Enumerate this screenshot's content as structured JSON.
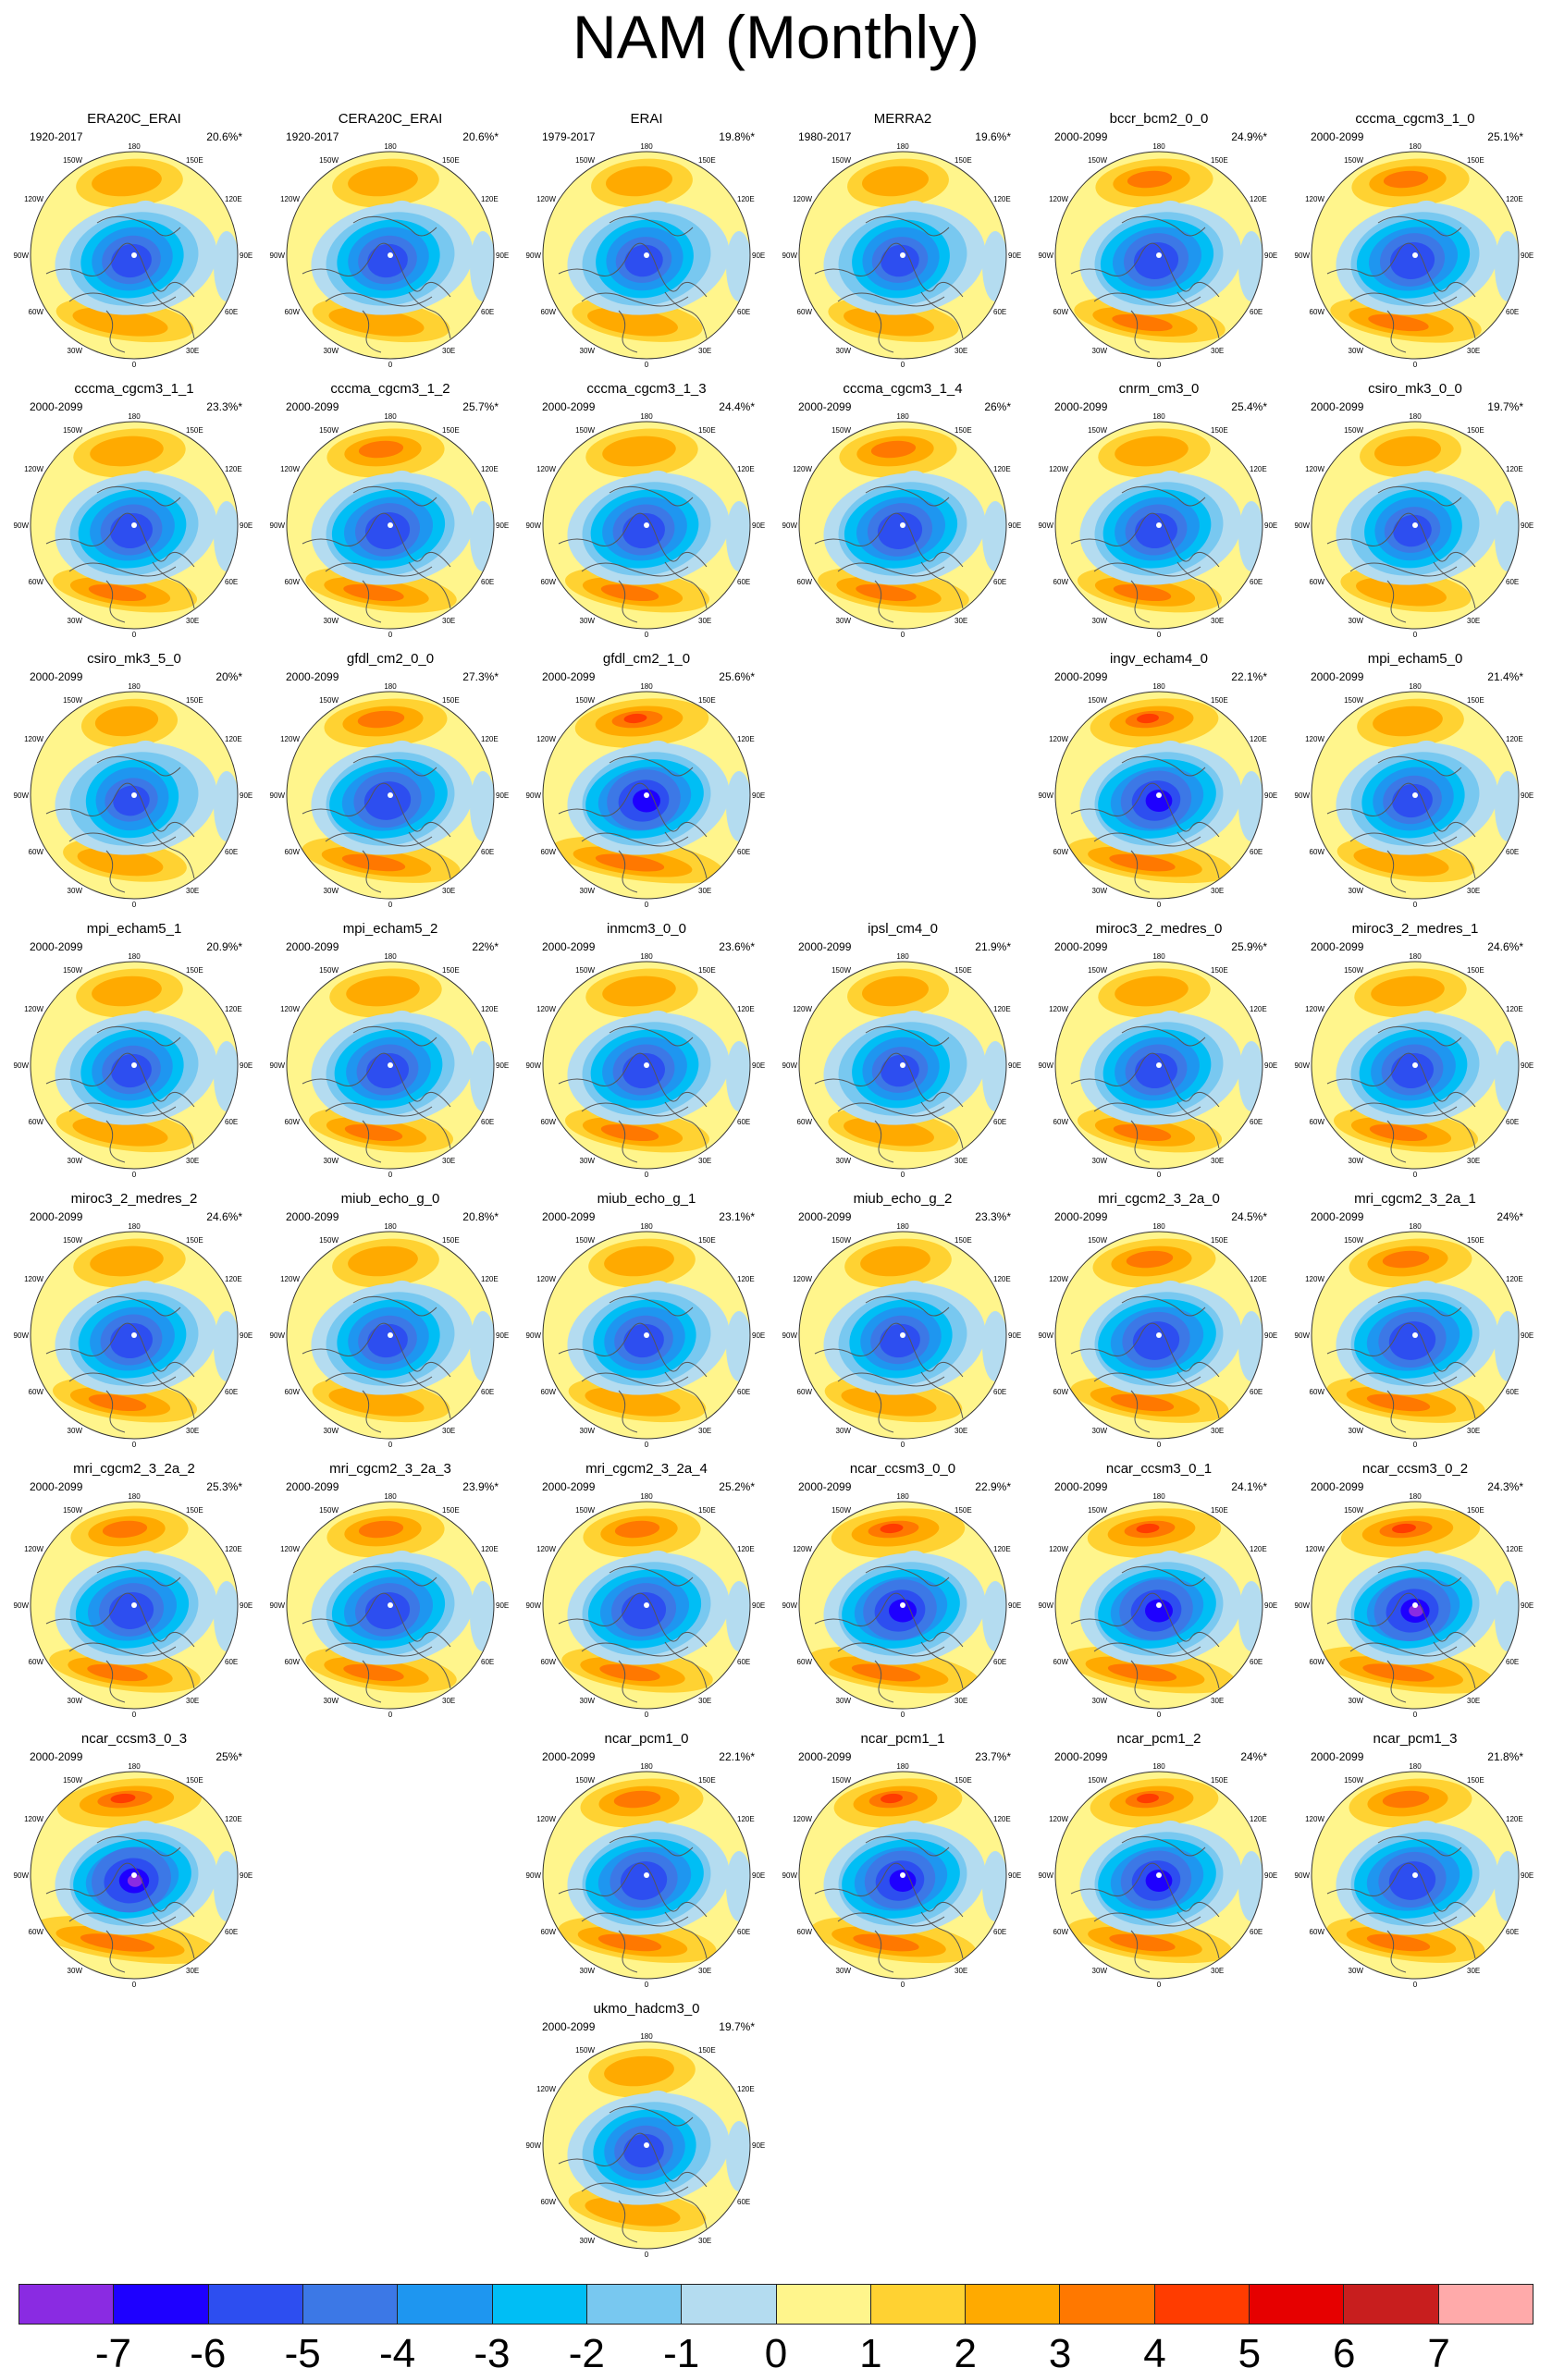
{
  "title": "NAM (Monthly)",
  "panels": [
    {
      "name": "ERA20C_ERAI",
      "period": "1920-2017",
      "pct": "20.6%*",
      "row": 0,
      "col": 0,
      "amp": 1.0
    },
    {
      "name": "CERA20C_ERAI",
      "period": "1920-2017",
      "pct": "20.6%*",
      "row": 0,
      "col": 1,
      "amp": 1.0
    },
    {
      "name": "ERAI",
      "period": "1979-2017",
      "pct": "19.8%*",
      "row": 0,
      "col": 2,
      "amp": 0.95
    },
    {
      "name": "MERRA2",
      "period": "1980-2017",
      "pct": "19.6%*",
      "row": 0,
      "col": 3,
      "amp": 0.95
    },
    {
      "name": "bccr_bcm2_0_0",
      "period": "2000-2099",
      "pct": "24.9%*",
      "row": 0,
      "col": 4,
      "amp": 1.1
    },
    {
      "name": "cccma_cgcm3_1_0",
      "period": "2000-2099",
      "pct": "25.1%*",
      "row": 0,
      "col": 5,
      "amp": 1.1
    },
    {
      "name": "cccma_cgcm3_1_1",
      "period": "2000-2099",
      "pct": "23.3%*",
      "row": 1,
      "col": 0,
      "amp": 1.05
    },
    {
      "name": "cccma_cgcm3_1_2",
      "period": "2000-2099",
      "pct": "25.7%*",
      "row": 1,
      "col": 1,
      "amp": 1.1
    },
    {
      "name": "cccma_cgcm3_1_3",
      "period": "2000-2099",
      "pct": "24.4%*",
      "row": 1,
      "col": 2,
      "amp": 1.05
    },
    {
      "name": "cccma_cgcm3_1_4",
      "period": "2000-2099",
      "pct": "26%*",
      "row": 1,
      "col": 3,
      "amp": 1.1
    },
    {
      "name": "cnrm_cm3_0",
      "period": "2000-2099",
      "pct": "25.4%*",
      "row": 1,
      "col": 4,
      "amp": 1.05
    },
    {
      "name": "csiro_mk3_0_0",
      "period": "2000-2099",
      "pct": "19.7%*",
      "row": 1,
      "col": 5,
      "amp": 0.95
    },
    {
      "name": "csiro_mk3_5_0",
      "period": "2000-2099",
      "pct": "20%*",
      "row": 2,
      "col": 0,
      "amp": 0.9
    },
    {
      "name": "gfdl_cm2_0_0",
      "period": "2000-2099",
      "pct": "27.3%*",
      "row": 2,
      "col": 1,
      "amp": 1.15
    },
    {
      "name": "gfdl_cm2_1_0",
      "period": "2000-2099",
      "pct": "25.6%*",
      "row": 2,
      "col": 2,
      "amp": 1.25
    },
    {
      "name": "ingv_echam4_0",
      "period": "2000-2099",
      "pct": "22.1%*",
      "row": 2,
      "col": 4,
      "amp": 1.2
    },
    {
      "name": "mpi_echam5_0",
      "period": "2000-2099",
      "pct": "21.4%*",
      "row": 2,
      "col": 5,
      "amp": 1.0
    },
    {
      "name": "mpi_echam5_1",
      "period": "2000-2099",
      "pct": "20.9%*",
      "row": 3,
      "col": 0,
      "amp": 1.0
    },
    {
      "name": "mpi_echam5_2",
      "period": "2000-2099",
      "pct": "22%*",
      "row": 3,
      "col": 1,
      "amp": 1.05
    },
    {
      "name": "inmcm3_0_0",
      "period": "2000-2099",
      "pct": "23.6%*",
      "row": 3,
      "col": 2,
      "amp": 1.05
    },
    {
      "name": "ipsl_cm4_0",
      "period": "2000-2099",
      "pct": "21.9%*",
      "row": 3,
      "col": 3,
      "amp": 0.95
    },
    {
      "name": "miroc3_2_medres_0",
      "period": "2000-2099",
      "pct": "25.9%*",
      "row": 3,
      "col": 4,
      "amp": 1.05
    },
    {
      "name": "miroc3_2_medres_1",
      "period": "2000-2099",
      "pct": "24.6%*",
      "row": 3,
      "col": 5,
      "amp": 1.05
    },
    {
      "name": "miroc3_2_medres_2",
      "period": "2000-2099",
      "pct": "24.6%*",
      "row": 4,
      "col": 0,
      "amp": 1.05
    },
    {
      "name": "miub_echo_g_0",
      "period": "2000-2099",
      "pct": "20.8%*",
      "row": 4,
      "col": 1,
      "amp": 1.0
    },
    {
      "name": "miub_echo_g_1",
      "period": "2000-2099",
      "pct": "23.1%*",
      "row": 4,
      "col": 2,
      "amp": 1.0
    },
    {
      "name": "miub_echo_g_2",
      "period": "2000-2099",
      "pct": "23.3%*",
      "row": 4,
      "col": 3,
      "amp": 1.0
    },
    {
      "name": "mri_cgcm2_3_2a_0",
      "period": "2000-2099",
      "pct": "24.5%*",
      "row": 4,
      "col": 4,
      "amp": 1.15
    },
    {
      "name": "mri_cgcm2_3_2a_1",
      "period": "2000-2099",
      "pct": "24%*",
      "row": 4,
      "col": 5,
      "amp": 1.15
    },
    {
      "name": "mri_cgcm2_3_2a_2",
      "period": "2000-2099",
      "pct": "25.3%*",
      "row": 5,
      "col": 0,
      "amp": 1.1
    },
    {
      "name": "mri_cgcm2_3_2a_3",
      "period": "2000-2099",
      "pct": "23.9%*",
      "row": 5,
      "col": 1,
      "amp": 1.1
    },
    {
      "name": "mri_cgcm2_3_2a_4",
      "period": "2000-2099",
      "pct": "25.2%*",
      "row": 5,
      "col": 2,
      "amp": 1.1
    },
    {
      "name": "ncar_ccsm3_0_0",
      "period": "2000-2099",
      "pct": "22.9%*",
      "row": 5,
      "col": 3,
      "amp": 1.25
    },
    {
      "name": "ncar_ccsm3_0_1",
      "period": "2000-2099",
      "pct": "24.1%*",
      "row": 5,
      "col": 4,
      "amp": 1.25
    },
    {
      "name": "ncar_ccsm3_0_2",
      "period": "2000-2099",
      "pct": "24.3%*",
      "row": 5,
      "col": 5,
      "amp": 1.3
    },
    {
      "name": "ncar_ccsm3_0_3",
      "period": "2000-2099",
      "pct": "25%*",
      "row": 6,
      "col": 0,
      "amp": 1.35
    },
    {
      "name": "ncar_pcm1_0",
      "period": "2000-2099",
      "pct": "22.1%*",
      "row": 6,
      "col": 2,
      "amp": 1.15
    },
    {
      "name": "ncar_pcm1_1",
      "period": "2000-2099",
      "pct": "23.7%*",
      "row": 6,
      "col": 3,
      "amp": 1.2
    },
    {
      "name": "ncar_pcm1_2",
      "period": "2000-2099",
      "pct": "24%*",
      "row": 6,
      "col": 4,
      "amp": 1.2
    },
    {
      "name": "ncar_pcm1_3",
      "period": "2000-2099",
      "pct": "21.8%*",
      "row": 6,
      "col": 5,
      "amp": 1.15
    },
    {
      "name": "ukmo_hadcm3_0",
      "period": "2000-2099",
      "pct": "19.7%*",
      "row": 7,
      "col": 2,
      "amp": 1.0
    }
  ],
  "map_labels": {
    "top": "180",
    "bottom": "0",
    "left": "90W",
    "right": "90E",
    "tl": "120W",
    "tr": "120E",
    "bl": "60W",
    "br": "60E",
    "ttl": "150W",
    "ttr": "150E",
    "bbl": "30W",
    "bbr": "30E"
  },
  "colorbar": {
    "colors": [
      "#8a2be2",
      "#1e00ff",
      "#2d4ef0",
      "#3c78e6",
      "#1e96f0",
      "#00bef5",
      "#78c8f0",
      "#b4dcf0",
      "#fff58c",
      "#ffd232",
      "#ffaa00",
      "#ff7800",
      "#ff3c00",
      "#e60000",
      "#c81e1e",
      "#ffaaaa"
    ],
    "ticks": [
      "-7",
      "-6",
      "-5",
      "-4",
      "-3",
      "-2",
      "-1",
      "0",
      "1",
      "2",
      "3",
      "4",
      "5",
      "6",
      "7"
    ]
  }
}
